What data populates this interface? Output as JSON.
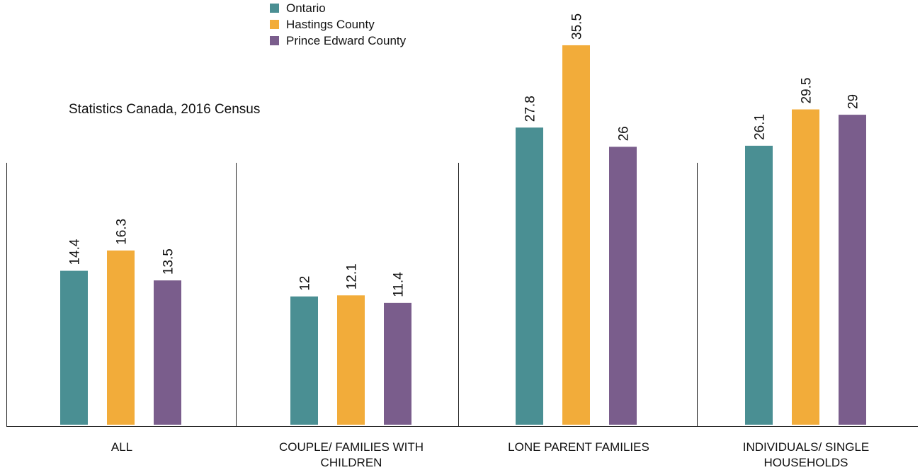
{
  "chart_data": {
    "type": "bar",
    "source_note": "Statistics Canada, 2016 Census",
    "categories": [
      [
        "ALL"
      ],
      [
        "COUPLE/ FAMILIES WITH",
        "CHILDREN"
      ],
      [
        "LONE PARENT FAMILIES"
      ],
      [
        "INDIVIDUALS/ SINGLE",
        "HOUSEHOLDS"
      ]
    ],
    "series": [
      {
        "name": "Ontario",
        "color": "#4a8f93",
        "values": [
          14.4,
          12,
          27.8,
          26.1
        ]
      },
      {
        "name": "Hastings County",
        "color": "#f2ac3a",
        "values": [
          16.3,
          12.1,
          35.5,
          29.5
        ]
      },
      {
        "name": "Prince Edward County",
        "color": "#7a5d8c",
        "values": [
          13.5,
          11.4,
          26,
          29
        ]
      }
    ],
    "value_labels": [
      [
        "14.4",
        "12",
        "27.8",
        "26.1"
      ],
      [
        "16.3",
        "12.1",
        "35.5",
        "29.5"
      ],
      [
        "13.5",
        "11.4",
        "26",
        "29"
      ]
    ],
    "ylim": [
      0,
      40
    ],
    "legend_position": "top-center",
    "grid": false
  }
}
